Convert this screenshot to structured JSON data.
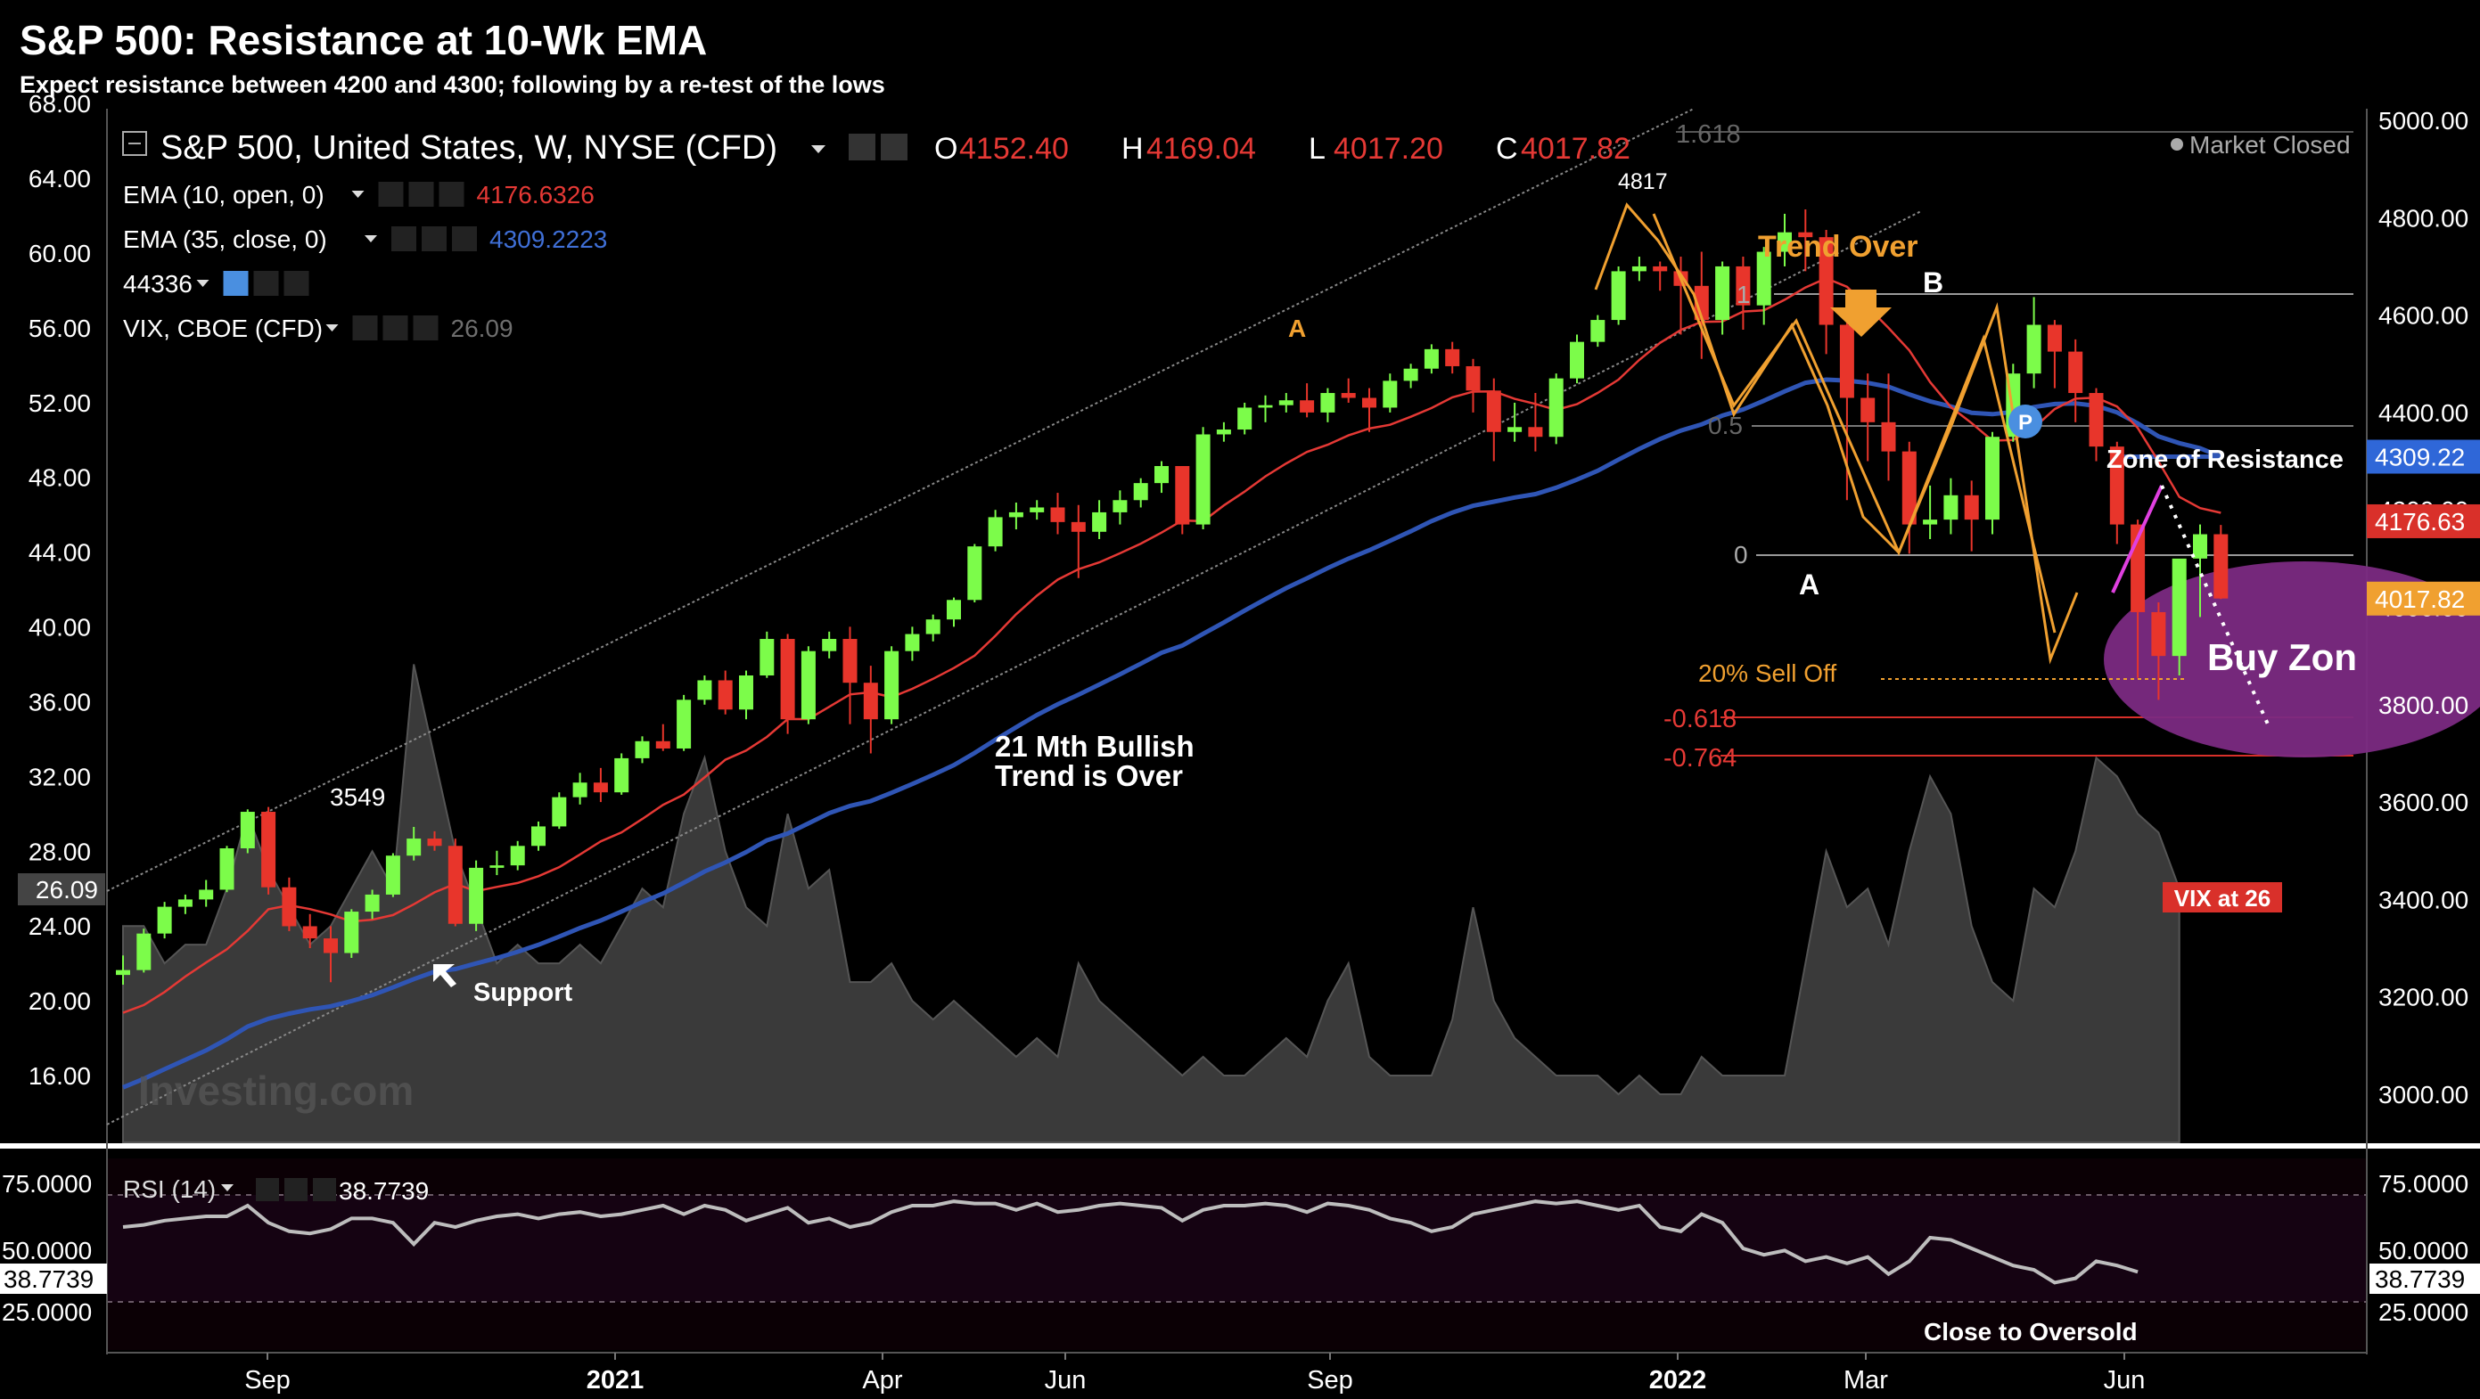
{
  "header": {
    "title": "S&P 500: Resistance at 10-Wk EMA",
    "subtitle": "Expect resistance between 4200 and 4300; following by a re-test of the lows"
  },
  "legend": {
    "symbol": "S&P 500, United States, W, NYSE (CFD)",
    "ohlc": [
      {
        "key": "O",
        "value": "4152.40"
      },
      {
        "key": "H",
        "value": "4169.04"
      },
      {
        "key": "L",
        "value": "4017.20"
      },
      {
        "key": "C",
        "value": "4017.82"
      }
    ],
    "studies": [
      {
        "label": "EMA (10, open, 0)",
        "value": "4176.6326",
        "color": "#e53935"
      },
      {
        "label": "EMA (35, close, 0)",
        "value": "4309.2223",
        "color": "#3f6fd6"
      },
      {
        "label": "44336",
        "value": "",
        "color": "#9e9e9e"
      },
      {
        "label": "VIX, CBOE (CFD)",
        "value": "26.09",
        "color": "#6e6e6e"
      }
    ],
    "market_status": "Market Closed",
    "watermark": "Investing.com"
  },
  "colors": {
    "up": "#7CFC4A",
    "down": "#E8352B",
    "ema_fast": "#e53935",
    "ema_slow": "#2f55b5",
    "elliott": "#f0a030",
    "buy_zone": "#8a2b8f",
    "vix_area": "#3c3c3c",
    "rsi_line": "#bdbdbd"
  },
  "axes": {
    "left_ticks": [
      "68.00",
      "64.00",
      "60.00",
      "56.00",
      "52.00",
      "48.00",
      "44.00",
      "40.00",
      "36.00",
      "32.00",
      "28.00",
      "24.00",
      "20.00",
      "16.00"
    ],
    "left_current": "26.09",
    "right_ticks": [
      "5000.00",
      "4800.00",
      "4600.00",
      "4400.00",
      "4200.00",
      "4000.00",
      "3800.00",
      "3600.00",
      "3400.00",
      "3200.00",
      "3000.00"
    ],
    "right_badges": [
      {
        "label": "4309.22",
        "value": 4309.22,
        "color": "#2f67d8"
      },
      {
        "label": "4176.63",
        "value": 4176.63,
        "color": "#d9302a"
      },
      {
        "label": "4017.82",
        "value": 4017.82,
        "color": "#f0a030"
      }
    ],
    "x_labels": [
      "Sep",
      "2021",
      "Apr",
      "Jun",
      "Sep",
      "2022",
      "Mar",
      "Jun"
    ]
  },
  "annotations": {
    "peak_label": "4817",
    "low_label": "3549",
    "wave_a_top": "A",
    "trend_over": "Trend Over",
    "wave_b": "B",
    "wave_a": "A",
    "zone_of_resistance": "Zone of Resistance",
    "bullish_over_line1": "21 Mth Bullish",
    "bullish_over_line2": "Trend is Over",
    "support": "Support",
    "sell_off": "20% Sell Off",
    "buy_zone": "Buy Zon",
    "vix_at": "VIX at 26",
    "fib_levels": [
      "1.618",
      "1",
      "0.5",
      "0",
      "-0.618",
      "-0.764"
    ],
    "pivot": "P"
  },
  "rsi": {
    "label": "RSI (14)",
    "value": "38.7739",
    "ticks": [
      "75.0000",
      "50.0000",
      "25.0000"
    ],
    "current": "38.7739",
    "note": "Close to Oversold"
  },
  "chart_data": {
    "type": "candlestick",
    "title": "S&P 500: Resistance at 10-Wk EMA",
    "period": "weekly",
    "price_range": [
      2900,
      5050
    ],
    "vix_range": [
      12,
      68
    ],
    "candles": [
      [
        3245,
        3285,
        3225,
        3255
      ],
      [
        3255,
        3340,
        3250,
        3330
      ],
      [
        3330,
        3395,
        3320,
        3385
      ],
      [
        3385,
        3410,
        3370,
        3400
      ],
      [
        3400,
        3440,
        3385,
        3420
      ],
      [
        3420,
        3510,
        3415,
        3505
      ],
      [
        3505,
        3585,
        3495,
        3580
      ],
      [
        3580,
        3590,
        3410,
        3425
      ],
      [
        3425,
        3445,
        3335,
        3345
      ],
      [
        3345,
        3370,
        3300,
        3320
      ],
      [
        3320,
        3345,
        3230,
        3290
      ],
      [
        3290,
        3380,
        3280,
        3375
      ],
      [
        3375,
        3420,
        3360,
        3410
      ],
      [
        3410,
        3495,
        3405,
        3490
      ],
      [
        3490,
        3549,
        3480,
        3525
      ],
      [
        3525,
        3540,
        3500,
        3510
      ],
      [
        3510,
        3525,
        3345,
        3350
      ],
      [
        3350,
        3480,
        3335,
        3465
      ],
      [
        3465,
        3500,
        3450,
        3470
      ],
      [
        3470,
        3520,
        3460,
        3510
      ],
      [
        3510,
        3560,
        3500,
        3550
      ],
      [
        3550,
        3620,
        3545,
        3610
      ],
      [
        3610,
        3660,
        3595,
        3640
      ],
      [
        3640,
        3670,
        3600,
        3620
      ],
      [
        3620,
        3700,
        3615,
        3690
      ],
      [
        3690,
        3735,
        3680,
        3725
      ],
      [
        3725,
        3760,
        3705,
        3710
      ],
      [
        3710,
        3820,
        3705,
        3810
      ],
      [
        3810,
        3860,
        3800,
        3850
      ],
      [
        3850,
        3870,
        3780,
        3790
      ],
      [
        3790,
        3870,
        3770,
        3860
      ],
      [
        3860,
        3950,
        3855,
        3935
      ],
      [
        3935,
        3945,
        3740,
        3770
      ],
      [
        3770,
        3920,
        3760,
        3910
      ],
      [
        3910,
        3950,
        3895,
        3935
      ],
      [
        3935,
        3960,
        3760,
        3845
      ],
      [
        3845,
        3880,
        3700,
        3770
      ],
      [
        3770,
        3920,
        3760,
        3910
      ],
      [
        3910,
        3960,
        3890,
        3945
      ],
      [
        3945,
        3985,
        3930,
        3975
      ],
      [
        3975,
        4020,
        3960,
        4015
      ],
      [
        4015,
        4130,
        4010,
        4125
      ],
      [
        4125,
        4200,
        4115,
        4185
      ],
      [
        4185,
        4215,
        4160,
        4195
      ],
      [
        4195,
        4220,
        4180,
        4205
      ],
      [
        4205,
        4235,
        4150,
        4175
      ],
      [
        4175,
        4210,
        4060,
        4155
      ],
      [
        4155,
        4220,
        4140,
        4195
      ],
      [
        4195,
        4240,
        4170,
        4220
      ],
      [
        4220,
        4265,
        4205,
        4255
      ],
      [
        4255,
        4300,
        4235,
        4290
      ],
      [
        4290,
        4290,
        4150,
        4170
      ],
      [
        4170,
        4370,
        4160,
        4355
      ],
      [
        4355,
        4380,
        4340,
        4365
      ],
      [
        4365,
        4420,
        4355,
        4410
      ],
      [
        4410,
        4435,
        4380,
        4415
      ],
      [
        4415,
        4440,
        4400,
        4425
      ],
      [
        4425,
        4460,
        4390,
        4400
      ],
      [
        4400,
        4450,
        4380,
        4440
      ],
      [
        4440,
        4470,
        4420,
        4430
      ],
      [
        4430,
        4450,
        4360,
        4410
      ],
      [
        4410,
        4480,
        4400,
        4465
      ],
      [
        4465,
        4500,
        4450,
        4490
      ],
      [
        4490,
        4540,
        4480,
        4530
      ],
      [
        4530,
        4545,
        4480,
        4495
      ],
      [
        4495,
        4510,
        4400,
        4445
      ],
      [
        4445,
        4470,
        4300,
        4360
      ],
      [
        4360,
        4420,
        4340,
        4370
      ],
      [
        4370,
        4440,
        4320,
        4350
      ],
      [
        4350,
        4480,
        4335,
        4470
      ],
      [
        4470,
        4560,
        4460,
        4545
      ],
      [
        4545,
        4600,
        4535,
        4590
      ],
      [
        4590,
        4700,
        4580,
        4690
      ],
      [
        4690,
        4720,
        4670,
        4700
      ],
      [
        4700,
        4710,
        4650,
        4690
      ],
      [
        4690,
        4720,
        4560,
        4660
      ],
      [
        4660,
        4730,
        4510,
        4590
      ],
      [
        4590,
        4710,
        4560,
        4700
      ],
      [
        4700,
        4720,
        4570,
        4620
      ],
      [
        4620,
        4740,
        4580,
        4730
      ],
      [
        4730,
        4808,
        4700,
        4770
      ],
      [
        4770,
        4817,
        4690,
        4760
      ],
      [
        4760,
        4775,
        4520,
        4580
      ],
      [
        4580,
        4600,
        4220,
        4430
      ],
      [
        4430,
        4480,
        4300,
        4380
      ],
      [
        4380,
        4480,
        4260,
        4320
      ],
      [
        4320,
        4340,
        4110,
        4170
      ],
      [
        4170,
        4250,
        4140,
        4180
      ],
      [
        4180,
        4265,
        4150,
        4230
      ],
      [
        4230,
        4260,
        4115,
        4180
      ],
      [
        4180,
        4360,
        4150,
        4350
      ],
      [
        4350,
        4500,
        4340,
        4480
      ],
      [
        4480,
        4637,
        4450,
        4580
      ],
      [
        4580,
        4590,
        4450,
        4525
      ],
      [
        4525,
        4550,
        4380,
        4440
      ],
      [
        4440,
        4450,
        4300,
        4330
      ],
      [
        4330,
        4340,
        4130,
        4170
      ],
      [
        4170,
        4180,
        3855,
        3990
      ],
      [
        3990,
        4010,
        3810,
        3900
      ],
      [
        3900,
        4090,
        3860,
        4100
      ],
      [
        4100,
        4170,
        3980,
        4150
      ],
      [
        4150,
        4169,
        4017,
        4018
      ]
    ],
    "ema_fast": "EMA (10, open, 0)",
    "ema_slow": "EMA (35, close, 0)",
    "rsi_values": [
      60,
      61,
      63,
      64,
      65,
      65,
      70,
      62,
      58,
      57,
      59,
      64,
      64,
      62,
      52,
      62,
      60,
      63,
      65,
      66,
      64,
      66,
      67,
      65,
      66,
      68,
      70,
      66,
      70,
      68,
      63,
      66,
      69,
      62,
      64,
      60,
      62,
      67,
      70,
      70,
      72,
      71,
      71,
      68,
      71,
      67,
      68,
      70,
      71,
      70,
      69,
      63,
      68,
      70,
      70,
      71,
      70,
      67,
      71,
      70,
      68,
      64,
      62,
      58,
      60,
      66,
      68,
      70,
      72,
      71,
      72,
      70,
      68,
      70,
      60,
      58,
      66,
      62,
      50,
      47,
      49,
      44,
      46,
      43,
      46,
      38,
      44,
      55,
      54,
      50,
      46,
      42,
      40,
      34,
      36,
      44,
      42,
      39
    ],
    "vix_values": [
      24,
      24,
      22,
      23,
      23,
      26,
      30,
      27,
      25,
      23,
      24,
      26,
      28,
      26,
      38,
      33,
      28,
      25,
      22,
      23,
      22,
      22,
      23,
      22,
      24,
      26,
      25,
      30,
      33,
      28,
      25,
      24,
      30,
      26,
      27,
      21,
      21,
      22,
      20,
      19,
      20,
      19,
      18,
      17,
      18,
      17,
      22,
      20,
      19,
      18,
      17,
      16,
      17,
      16,
      16,
      17,
      18,
      17,
      20,
      22,
      17,
      16,
      16,
      16,
      19,
      25,
      20,
      18,
      17,
      16,
      16,
      16,
      15,
      16,
      15,
      15,
      17,
      16,
      16,
      16,
      16,
      22,
      28,
      25,
      26,
      23,
      28,
      32,
      30,
      24,
      21,
      20,
      26,
      25,
      28,
      33,
      32,
      30,
      29,
      26
    ]
  }
}
